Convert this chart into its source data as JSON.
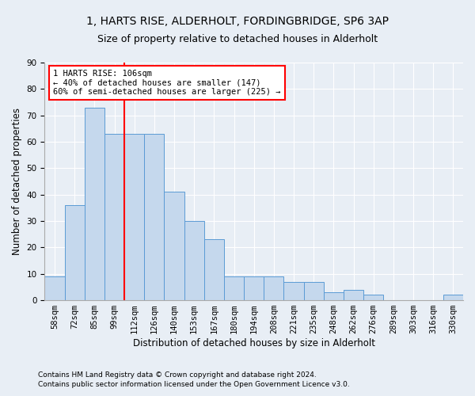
{
  "title1": "1, HARTS RISE, ALDERHOLT, FORDINGBRIDGE, SP6 3AP",
  "title2": "Size of property relative to detached houses in Alderholt",
  "xlabel": "Distribution of detached houses by size in Alderholt",
  "ylabel": "Number of detached properties",
  "footnote1": "Contains HM Land Registry data © Crown copyright and database right 2024.",
  "footnote2": "Contains public sector information licensed under the Open Government Licence v3.0.",
  "categories": [
    "58sqm",
    "72sqm",
    "85sqm",
    "99sqm",
    "112sqm",
    "126sqm",
    "140sqm",
    "153sqm",
    "167sqm",
    "180sqm",
    "194sqm",
    "208sqm",
    "221sqm",
    "235sqm",
    "248sqm",
    "262sqm",
    "276sqm",
    "289sqm",
    "303sqm",
    "316sqm",
    "330sqm"
  ],
  "values": [
    9,
    36,
    73,
    63,
    63,
    63,
    41,
    30,
    23,
    9,
    9,
    9,
    7,
    7,
    3,
    4,
    2,
    0,
    0,
    0,
    2
  ],
  "bar_color": "#c5d8ed",
  "bar_edge_color": "#5b9bd5",
  "annotation_text_line1": "1 HARTS RISE: 106sqm",
  "annotation_text_line2": "← 40% of detached houses are smaller (147)",
  "annotation_text_line3": "60% of semi-detached houses are larger (225) →",
  "annotation_box_color": "white",
  "annotation_box_edge_color": "red",
  "vline_color": "red",
  "vline_x": 3.5,
  "ylim": [
    0,
    90
  ],
  "background_color": "#e8eef5",
  "plot_background": "#e8eef5",
  "grid_color": "white",
  "title_fontsize": 10,
  "subtitle_fontsize": 9,
  "axis_label_fontsize": 8.5,
  "tick_fontsize": 7.5,
  "footnote_fontsize": 6.5
}
